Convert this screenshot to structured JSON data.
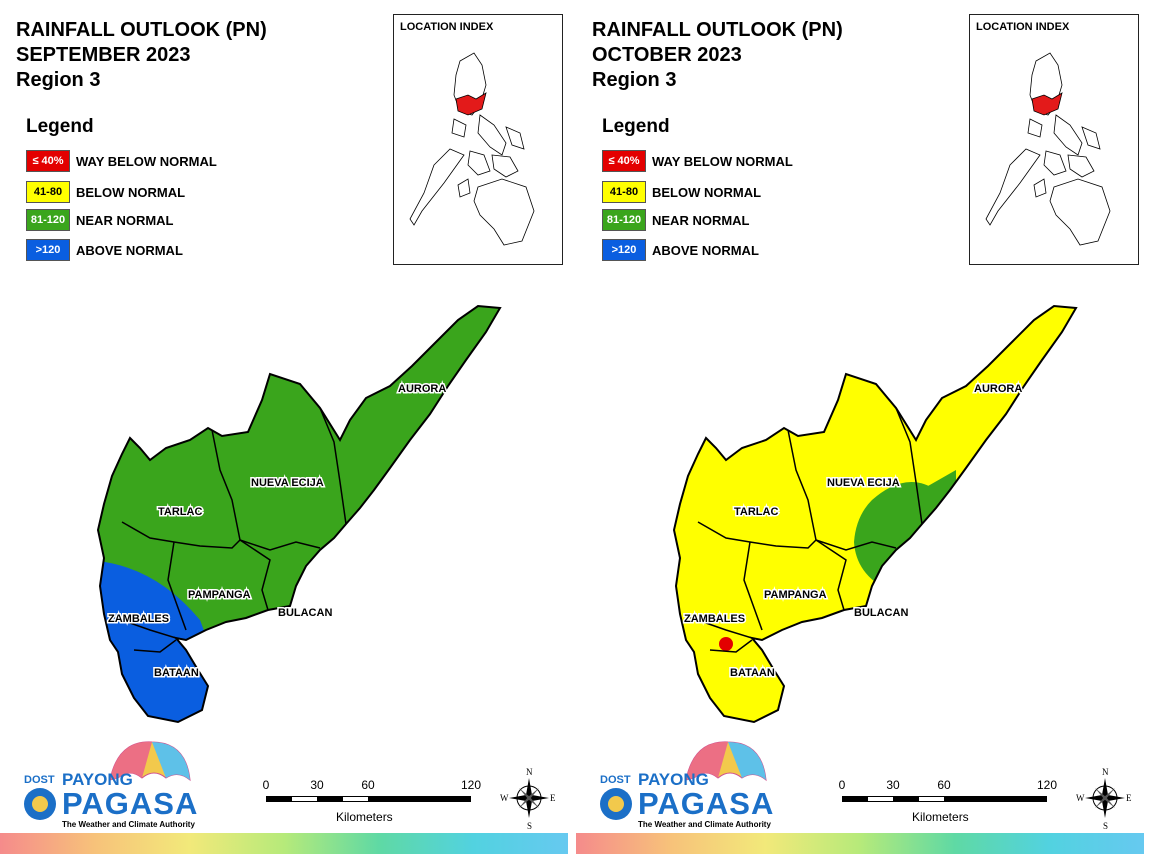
{
  "panels": [
    {
      "id": "sep",
      "title_line1": "RAINFALL OUTLOOK (PN)",
      "title_line2": "SEPTEMBER 2023",
      "title_line3": "Region 3",
      "legend_title": "Legend",
      "legend": [
        {
          "code": "≤ 40%",
          "label": "WAY BELOW NORMAL",
          "color": "#e30000",
          "text_color": "#ffffff"
        },
        {
          "code": "41-80",
          "label": "BELOW NORMAL",
          "color": "#ffff00",
          "text_color": "#000000"
        },
        {
          "code": "81-120",
          "label": "NEAR NORMAL",
          "color": "#3aa51c",
          "text_color": "#ffffff"
        },
        {
          "code": ">120",
          "label": "ABOVE NORMAL",
          "color": "#0a5ee0",
          "text_color": "#ffffff"
        }
      ],
      "inset_title": "LOCATION INDEX",
      "provinces": {
        "aurora": "AURORA",
        "nueva_ecija": "NUEVA ECIJA",
        "tarlac": "TARLAC",
        "pampanga": "PAMPANGA",
        "bulacan": "BULACAN",
        "zambales": "ZAMBALES",
        "bataan": "BATAAN"
      },
      "base_category": "NEAR NORMAL",
      "overlay_categories": [
        "ABOVE NORMAL"
      ],
      "scale": {
        "ticks": [
          "0",
          "30",
          "60",
          "120"
        ],
        "units": "Kilometers"
      },
      "compass": {
        "n": "N",
        "s": "S",
        "e": "E",
        "w": "W"
      },
      "logo": {
        "dost": "DOST",
        "payong": "PAYONG",
        "pagasa": "PAGASA",
        "tagline": "The Weather and Climate Authority"
      }
    },
    {
      "id": "oct",
      "title_line1": "RAINFALL OUTLOOK (PN)",
      "title_line2": "OCTOBER 2023",
      "title_line3": "Region 3",
      "legend_title": "Legend",
      "legend": [
        {
          "code": "≤ 40%",
          "label": "WAY BELOW NORMAL",
          "color": "#e30000",
          "text_color": "#ffffff"
        },
        {
          "code": "41-80",
          "label": "BELOW NORMAL",
          "color": "#ffff00",
          "text_color": "#000000"
        },
        {
          "code": "81-120",
          "label": "NEAR NORMAL",
          "color": "#3aa51c",
          "text_color": "#ffffff"
        },
        {
          "code": ">120",
          "label": "ABOVE NORMAL",
          "color": "#0a5ee0",
          "text_color": "#ffffff"
        }
      ],
      "inset_title": "LOCATION INDEX",
      "provinces": {
        "aurora": "AURORA",
        "nueva_ecija": "NUEVA ECIJA",
        "tarlac": "TARLAC",
        "pampanga": "PAMPANGA",
        "bulacan": "BULACAN",
        "zambales": "ZAMBALES",
        "bataan": "BATAAN"
      },
      "base_category": "BELOW NORMAL",
      "overlay_categories": [
        "NEAR NORMAL",
        "WAY BELOW NORMAL"
      ],
      "scale": {
        "ticks": [
          "0",
          "30",
          "60",
          "120"
        ],
        "units": "Kilometers"
      },
      "compass": {
        "n": "N",
        "s": "S",
        "e": "E",
        "w": "W"
      },
      "logo": {
        "dost": "DOST",
        "payong": "PAYONG",
        "pagasa": "PAGASA",
        "tagline": "The Weather and Climate Authority"
      }
    }
  ],
  "colors": {
    "way_below": "#e30000",
    "below": "#ffff00",
    "near": "#3aa51c",
    "above": "#0a5ee0",
    "highlight": "#e31a1a"
  }
}
